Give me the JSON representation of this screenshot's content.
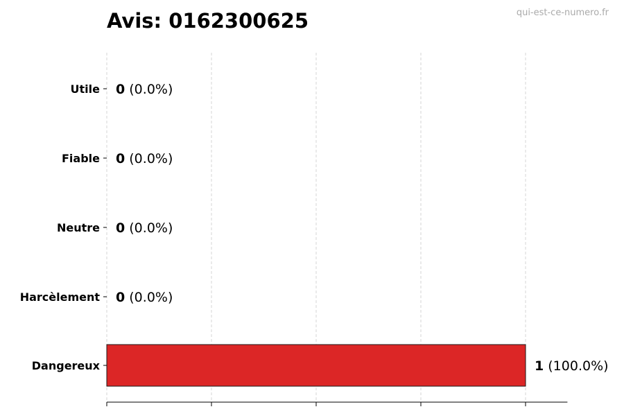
{
  "watermark": "qui-est-ce-numero.fr",
  "chart_data": {
    "type": "bar",
    "orientation": "horizontal",
    "title": "Avis: 0162300625",
    "xlabel": "",
    "ylabel": "",
    "categories": [
      "Utile",
      "Fiable",
      "Neutre",
      "Harcèlement",
      "Dangereux"
    ],
    "values": [
      0,
      0,
      0,
      0,
      1
    ],
    "value_labels": [
      "0",
      "0",
      "0",
      "0",
      "1"
    ],
    "percent_labels": [
      "(0.0%)",
      "(0.0%)",
      "(0.0%)",
      "(0.0%)",
      "(100.0%)"
    ],
    "bar_colors": [
      "#1a1a1a",
      "#1a1a1a",
      "#1a1a1a",
      "#1a1a1a",
      "#dc2626"
    ],
    "xlim": [
      0,
      1.1
    ],
    "xticks": [
      0,
      0.25,
      0.5,
      0.75,
      1.0
    ],
    "x_tick_labels_shown": false,
    "grid": "x-dashed",
    "legend": "none"
  }
}
